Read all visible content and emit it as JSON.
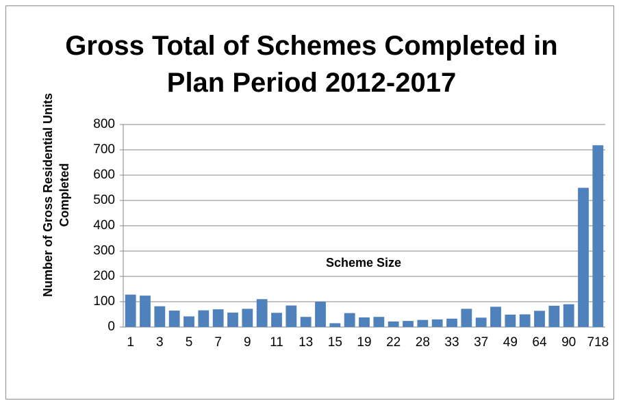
{
  "chart_data": {
    "type": "bar",
    "title": "Gross Total of Schemes Completed in Plan Period 2012-2017",
    "x_label": "Scheme Size",
    "y_label": "Number of Gross Residential Units Completed",
    "categories": [
      "1",
      null,
      "3",
      null,
      "5",
      null,
      "7",
      null,
      "9",
      null,
      "11",
      null,
      "13",
      null,
      "15",
      null,
      "19",
      null,
      "22",
      null,
      "28",
      null,
      "33",
      null,
      "37",
      null,
      "49",
      null,
      "64",
      null,
      "90",
      null,
      "718"
    ],
    "values": [
      128,
      124,
      82,
      65,
      42,
      66,
      70,
      57,
      72,
      110,
      56,
      85,
      40,
      100,
      15,
      55,
      38,
      40,
      22,
      24,
      28,
      30,
      33,
      72,
      37,
      80,
      49,
      50,
      64,
      84,
      90,
      550,
      718
    ],
    "color": "#4f81bd",
    "ylim": [
      0,
      800
    ],
    "yticks": [
      0,
      100,
      200,
      300,
      400,
      500,
      600,
      700,
      800
    ],
    "grid": true
  }
}
